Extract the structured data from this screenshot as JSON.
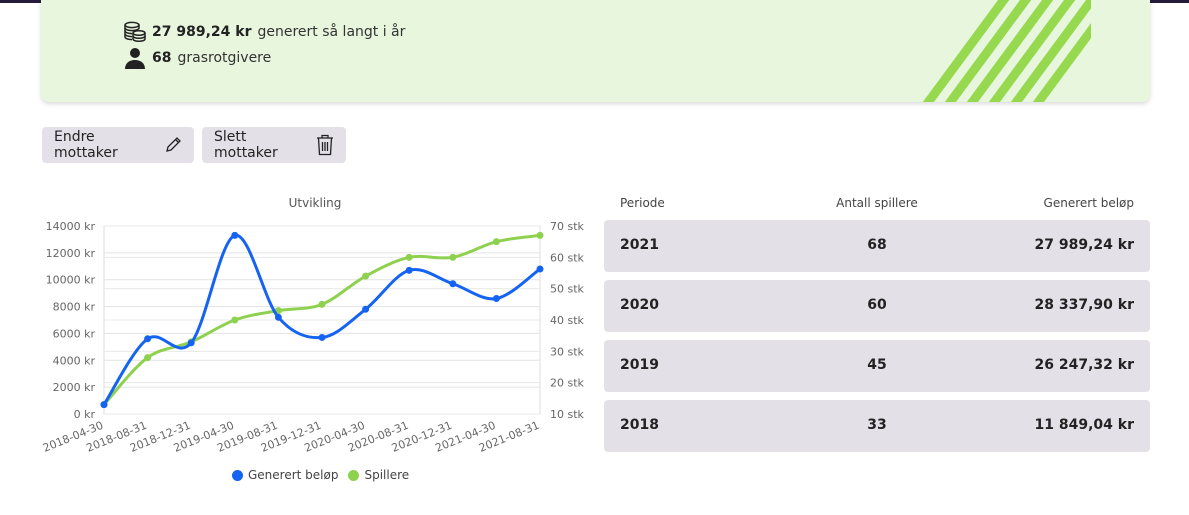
{
  "summary": {
    "amount_value": "27 989,24 kr",
    "amount_label": "generert så langt i år",
    "donors_value": "68",
    "donors_label": "grasrotgivere",
    "icons": [
      "coins-icon",
      "person-icon"
    ]
  },
  "actions": {
    "edit_label": "Endre mottaker",
    "edit_icon": "pencil-icon",
    "delete_label": "Slett mottaker",
    "delete_icon": "trash-icon"
  },
  "chart_data": {
    "type": "line",
    "title": "Utvikling",
    "x": [
      "2018-04-30",
      "2018-08-31",
      "2018-12-31",
      "2019-04-30",
      "2019-08-31",
      "2019-12-31",
      "2020-04-30",
      "2020-08-31",
      "2020-12-31",
      "2021-04-30",
      "2021-08-31"
    ],
    "series": [
      {
        "name": "Generert beløp",
        "axis": "left",
        "color": "#1463f3",
        "values": [
          700,
          5600,
          5300,
          13300,
          7200,
          5700,
          7800,
          10700,
          9700,
          8600,
          10800
        ]
      },
      {
        "name": "Spillere",
        "axis": "right",
        "color": "#8ed14f",
        "values": [
          13,
          28,
          33,
          40,
          43,
          45,
          54,
          60,
          60,
          65,
          67
        ]
      }
    ],
    "yleft": {
      "min": 0,
      "max": 14000,
      "step": 2000,
      "unit": "kr"
    },
    "yright": {
      "min": 10,
      "max": 70,
      "step": 10,
      "unit": "stk"
    },
    "legend": "bottom",
    "grid": true
  },
  "table": {
    "headers": [
      "Periode",
      "Antall spillere",
      "Generert beløp"
    ],
    "rows": [
      {
        "period": "2021",
        "players": "68",
        "amount": "27 989,24 kr"
      },
      {
        "period": "2020",
        "players": "60",
        "amount": "28 337,90 kr"
      },
      {
        "period": "2019",
        "players": "45",
        "amount": "26 247,32 kr"
      },
      {
        "period": "2018",
        "players": "33",
        "amount": "11 849,04 kr"
      }
    ]
  }
}
